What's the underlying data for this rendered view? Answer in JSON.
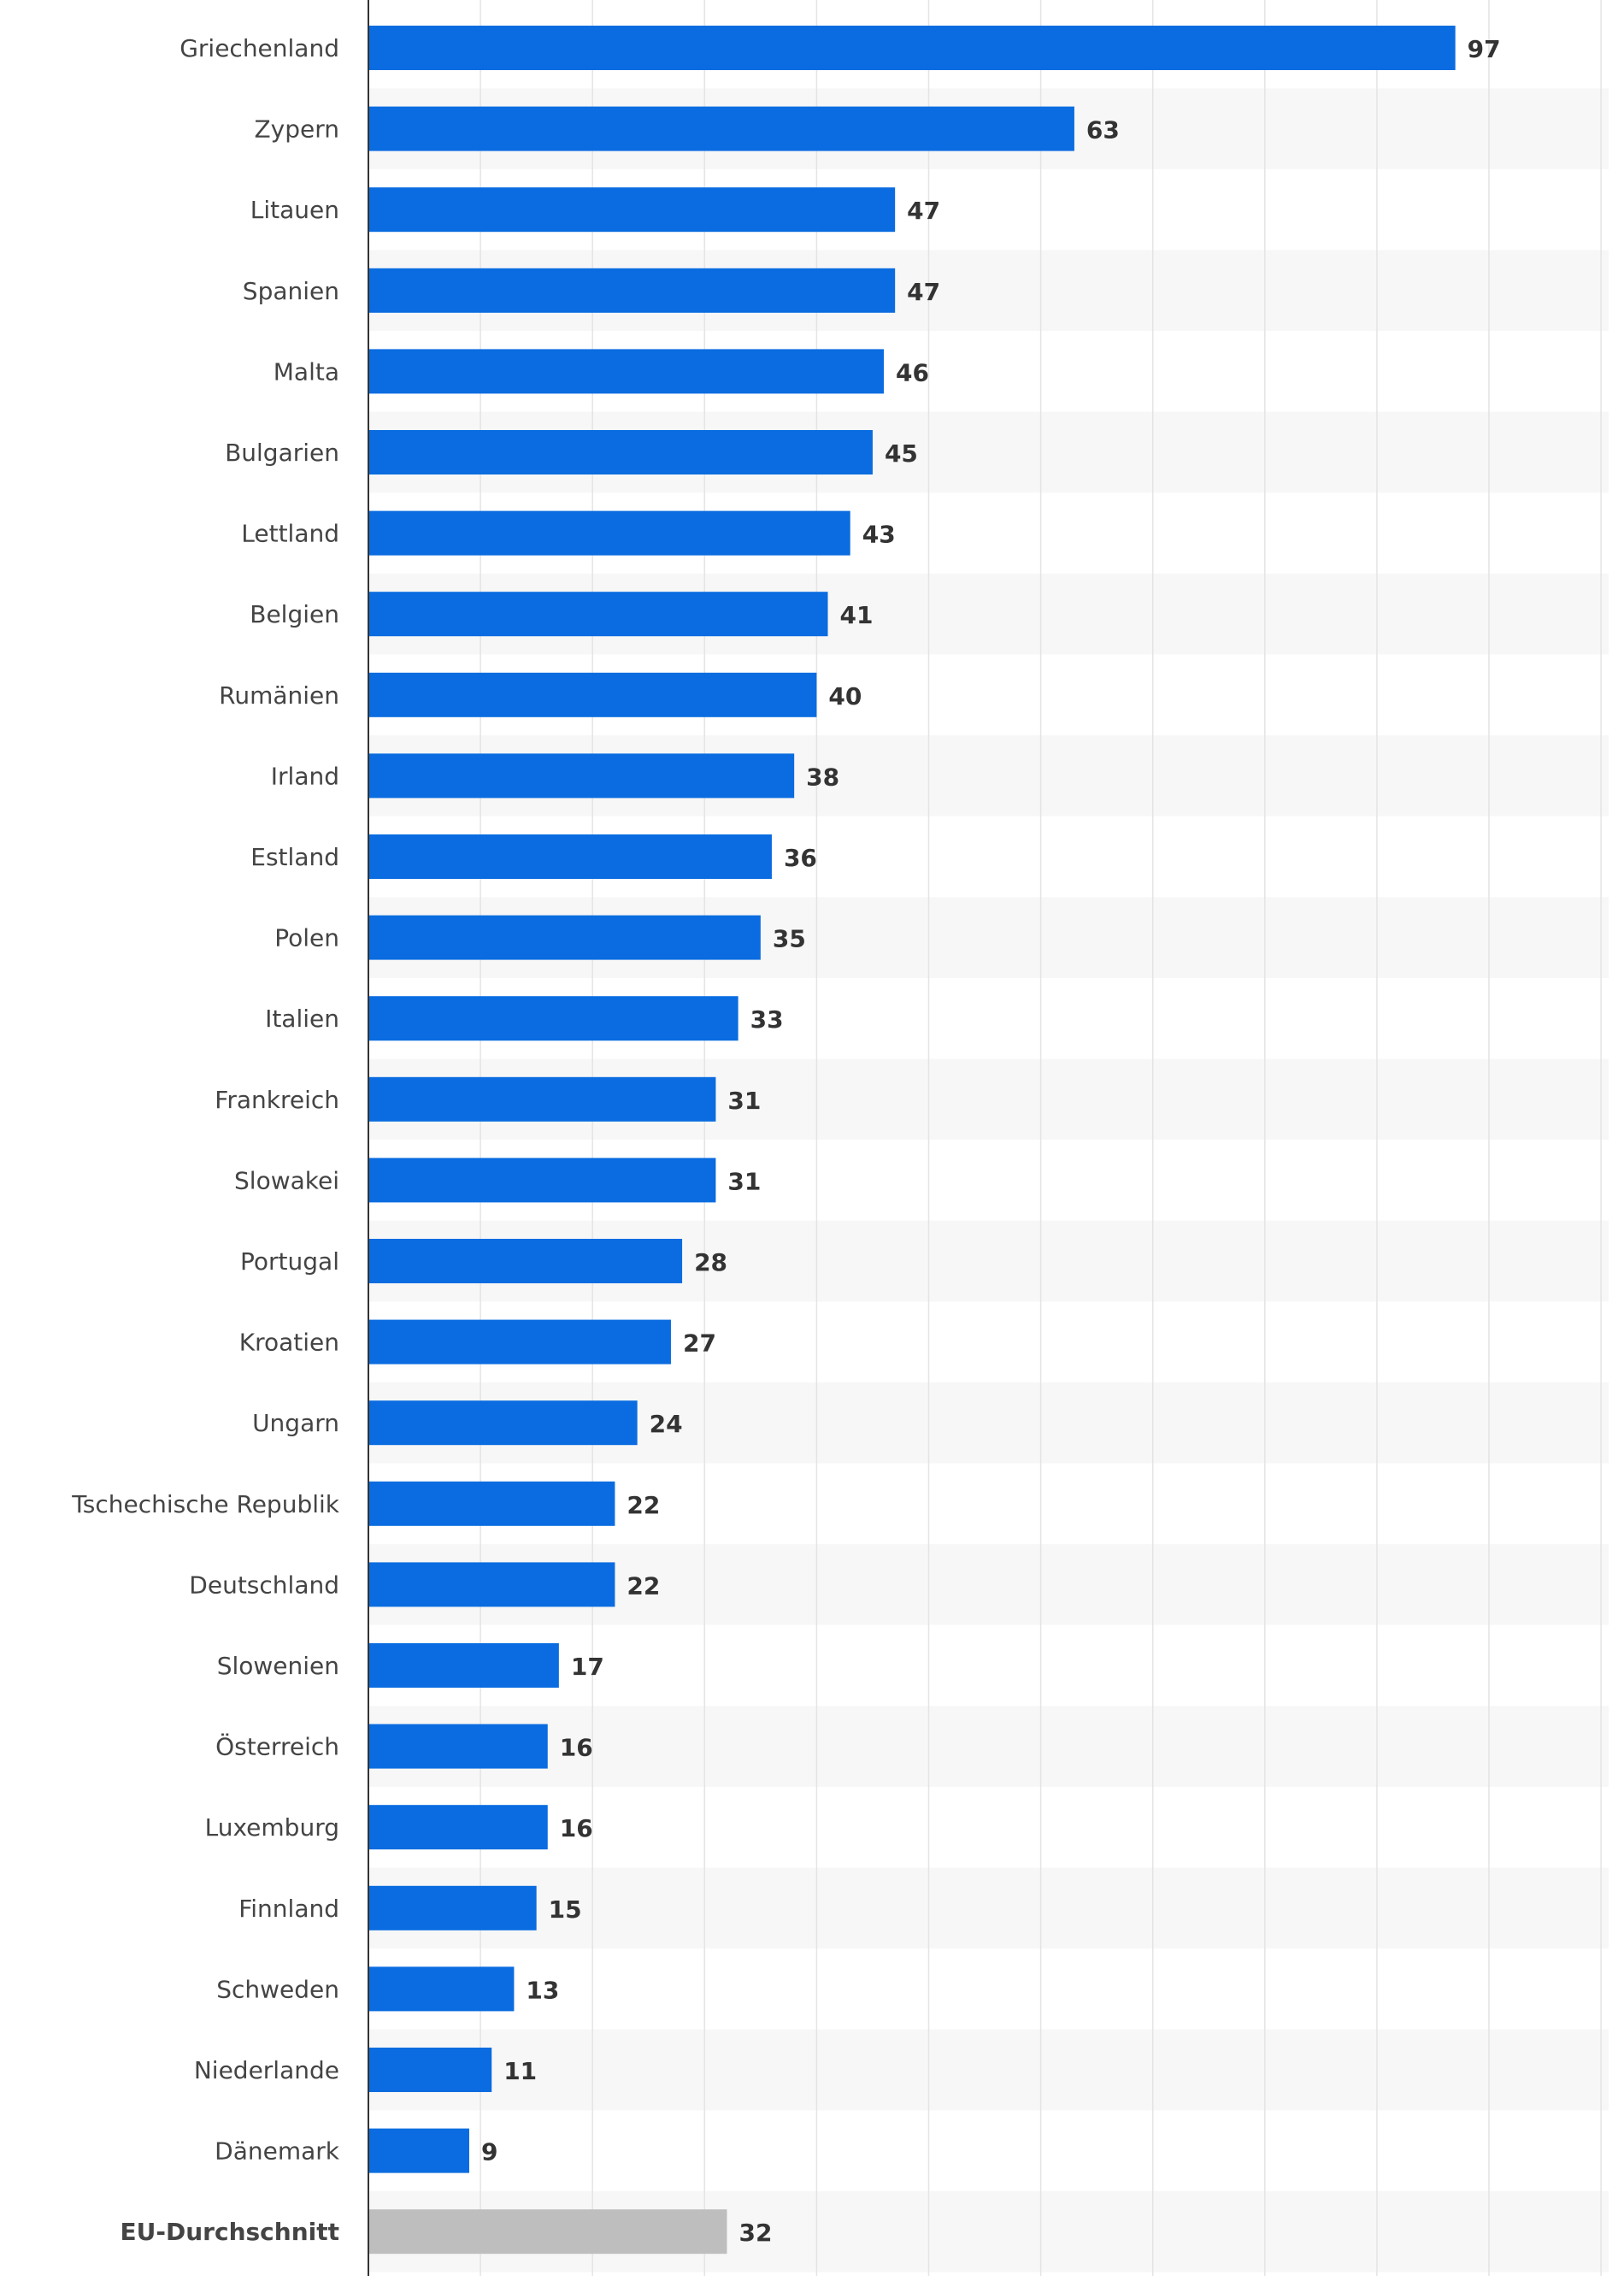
{
  "chart_data": {
    "type": "bar",
    "orientation": "horizontal",
    "title": "",
    "xlabel": "",
    "ylabel": "",
    "xlim": [
      0,
      110
    ],
    "grid": true,
    "categories": [
      "Griechenland",
      "Zypern",
      "Litauen",
      "Spanien",
      "Malta",
      "Bulgarien",
      "Lettland",
      "Belgien",
      "Rumänien",
      "Irland",
      "Estland",
      "Polen",
      "Italien",
      "Frankreich",
      "Slowakei",
      "Portugal",
      "Kroatien",
      "Ungarn",
      "Tschechische Republik",
      "Deutschland",
      "Slowenien",
      "Österreich",
      "Luxemburg",
      "Finnland",
      "Schweden",
      "Niederlande",
      "Dänemark",
      "EU-Durchschnitt"
    ],
    "values": [
      97,
      63,
      47,
      47,
      46,
      45,
      43,
      41,
      40,
      38,
      36,
      35,
      33,
      31,
      31,
      28,
      27,
      24,
      22,
      22,
      17,
      16,
      16,
      15,
      13,
      11,
      9,
      32
    ],
    "highlight": {
      "index": 27,
      "color": "#bebebe"
    },
    "bar_color": "#0a6ce0",
    "label_color": "#333333"
  }
}
